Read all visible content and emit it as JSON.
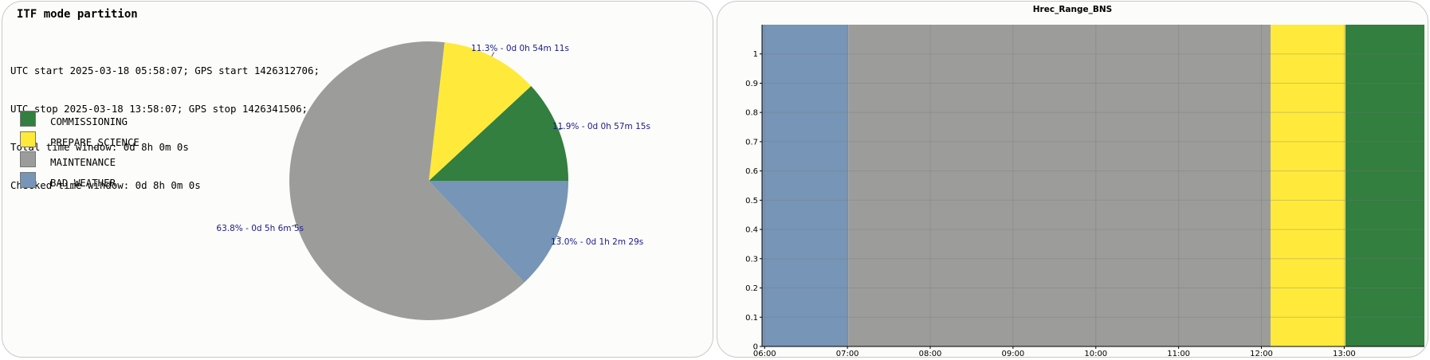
{
  "left": {
    "title": "ITF mode partition",
    "info_lines": [
      "UTC start 2025-03-18 05:58:07; GPS start 1426312706;",
      "UTC stop 2025-03-18 13:58:07; GPS stop 1426341506;",
      "Total time window: 0d 8h 0m 0s",
      "Checked time window: 0d 8h 0m 0s"
    ]
  },
  "right": {
    "title": "Hrec_Range_BNS"
  },
  "colors": {
    "COMMISSIONING": "#327f3f",
    "PREPARE_SCIENCE": "#ffea3b",
    "MAINTENANCE": "#9c9d9a",
    "BAD_WEATHER": "#7695b7",
    "label_text": "#1a1a8a"
  },
  "chart_data": [
    {
      "type": "pie",
      "legend_position": "left",
      "legend": [
        "COMMISSIONING",
        "PREPARE_SCIENCE",
        "MAINTENANCE",
        "BAD_WEATHER"
      ],
      "slices": [
        {
          "name": "COMMISSIONING",
          "value": 11.9,
          "label": "11.9% - 0d 0h 57m 15s",
          "color": "#327f3f"
        },
        {
          "name": "PREPARE_SCIENCE",
          "value": 11.3,
          "label": "11.3% - 0d 0h 54m 11s",
          "color": "#ffea3b"
        },
        {
          "name": "MAINTENANCE",
          "value": 63.8,
          "label": "63.8% - 0d 5h 6m 5s",
          "color": "#9c9d9a"
        },
        {
          "name": "BAD_WEATHER",
          "value": 13.0,
          "label": "13.0% - 0d 1h 2m 29s",
          "color": "#7695b7"
        }
      ]
    },
    {
      "type": "area",
      "title": "Hrec_Range_BNS",
      "xlim": [
        "05:58:07",
        "13:58:07"
      ],
      "ylim": [
        0,
        1.1
      ],
      "grid": true,
      "x_ticks": [
        "06:00",
        "07:00",
        "08:00",
        "09:00",
        "10:00",
        "11:00",
        "12:00",
        "13:00"
      ],
      "y_ticks": [
        "0",
        "0.1",
        "0.2",
        "0.3",
        "0.4",
        "0.5",
        "0.6",
        "0.7",
        "0.8",
        "0.9",
        "1"
      ],
      "segments": [
        {
          "mode": "BAD_WEATHER",
          "start": "05:58:07",
          "end": "07:00:36",
          "color": "#7695b7"
        },
        {
          "mode": "MAINTENANCE",
          "start": "07:00:36",
          "end": "12:06:41",
          "color": "#9c9d9a"
        },
        {
          "mode": "PREPARE_SCIENCE",
          "start": "12:06:41",
          "end": "13:00:52",
          "color": "#ffea3b"
        },
        {
          "mode": "COMMISSIONING",
          "start": "13:00:52",
          "end": "13:58:07",
          "color": "#327f3f"
        }
      ]
    }
  ]
}
